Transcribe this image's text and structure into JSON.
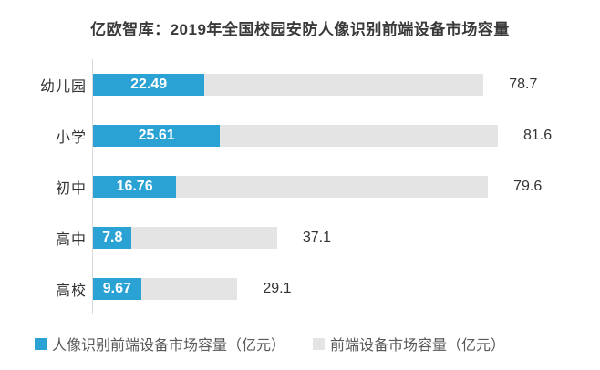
{
  "title": "亿欧智库：2019年全国校园安防人像识别前端设备市场容量",
  "colors": {
    "primary_blue": "#2aa2d4",
    "secondary_gray": "#e4e4e4",
    "axis_line": "#d9d9d9",
    "title_text": "#3a3a3a",
    "category_text": "#333333",
    "inside_value_text": "#ffffff",
    "outside_value_text": "#333333",
    "legend_text": "#595959",
    "background": "#ffffff"
  },
  "chart_data": {
    "type": "bar",
    "orientation": "horizontal",
    "style": "overlapped",
    "title": "亿欧智库：2019年全国校园安防人像识别前端设备市场容量",
    "categories": [
      "幼儿园",
      "小学",
      "初中",
      "高中",
      "高校"
    ],
    "series": [
      {
        "name": "人像识别前端设备市场容量（亿元）",
        "values": [
          22.49,
          25.61,
          16.76,
          7.8,
          9.67
        ],
        "color": "#2aa2d4",
        "label_position": "inside"
      },
      {
        "name": "前端设备市场容量（亿元）",
        "values": [
          78.7,
          81.6,
          79.6,
          37.1,
          29.1
        ],
        "color": "#e4e4e4",
        "label_position": "outside"
      }
    ],
    "xlabel": "",
    "ylabel": "",
    "xlim": [
      0,
      81.6
    ],
    "grid": false,
    "legend_position": "bottom"
  }
}
